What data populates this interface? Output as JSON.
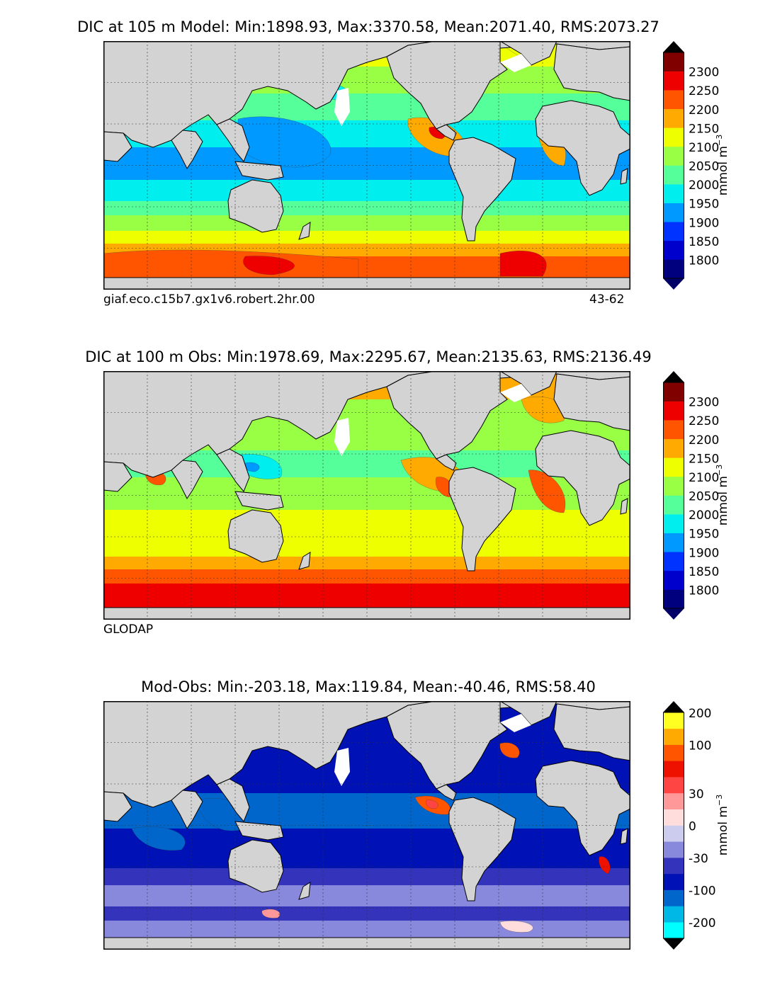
{
  "panels": [
    {
      "title": "DIC at 105 m Model: Min:1898.93, Max:3370.58, Mean:2071.40, RMS:2073.27",
      "left_note": "giaf.eco.c15b7.gx1v6.robert.2hr.00",
      "right_note": "43-62",
      "units_base": "mmol m",
      "units_exp": "−3"
    },
    {
      "title": "DIC at 100 m Obs: Min:1978.69, Max:2295.67, Mean:2135.63, RMS:2136.49",
      "left_note": "GLODAP",
      "right_note": "",
      "units_base": "mmol m",
      "units_exp": "−3"
    },
    {
      "title": "Mod-Obs: Min:-203.18, Max:119.84, Mean:-40.46, RMS:58.40",
      "left_note": "",
      "right_note": "",
      "units_base": "mmol m",
      "units_exp": "−3"
    }
  ],
  "chart_data": [
    {
      "type": "heatmap",
      "title": "DIC at 105 m Model: Min:1898.93, Max:3370.58, Mean:2071.40, RMS:2073.27",
      "source": "giaf.eco.c15b7.gx1v6.robert.2hr.00",
      "period": "43-62",
      "colorbar": {
        "label": "mmol m^-3",
        "ticks": [
          "1800",
          "1850",
          "1900",
          "1950",
          "2000",
          "2050",
          "2100",
          "2150",
          "2200",
          "2250",
          "2300"
        ],
        "colors": [
          "#00007f",
          "#0000cc",
          "#0033ff",
          "#0099ff",
          "#00eeee",
          "#55ff99",
          "#99ff44",
          "#eeff00",
          "#ffaa00",
          "#ff5500",
          "#ee0000",
          "#800000"
        ],
        "extend": "both",
        "under_color": "#000066",
        "over_color": "#000000"
      }
    },
    {
      "type": "heatmap",
      "title": "DIC at 100 m Obs: Min:1978.69, Max:2295.67, Mean:2135.63, RMS:2136.49",
      "source": "GLODAP",
      "colorbar": {
        "label": "mmol m^-3",
        "ticks": [
          "1800",
          "1850",
          "1900",
          "1950",
          "2000",
          "2050",
          "2100",
          "2150",
          "2200",
          "2250",
          "2300"
        ],
        "colors": [
          "#00007f",
          "#0000cc",
          "#0033ff",
          "#0099ff",
          "#00eeee",
          "#55ff99",
          "#99ff44",
          "#eeff00",
          "#ffaa00",
          "#ff5500",
          "#ee0000",
          "#800000"
        ],
        "extend": "both",
        "under_color": "#000066",
        "over_color": "#000000"
      }
    },
    {
      "type": "heatmap",
      "title": "Mod-Obs: Min:-203.18, Max:119.84, Mean:-40.46, RMS:58.40",
      "colorbar": {
        "label": "mmol m^-3",
        "ticks": [
          "-200",
          "-100",
          "-30",
          "0",
          "30",
          "100",
          "200"
        ],
        "colors": [
          "#00ffff",
          "#00b8e6",
          "#0066cc",
          "#0011b5",
          "#3333bb",
          "#8888dd",
          "#ccccee",
          "#ffdddd",
          "#ff9999",
          "#ff4444",
          "#ee1100",
          "#ff5500",
          "#ffaa00",
          "#ffff22"
        ],
        "extend": "both",
        "under_color": "#000000",
        "over_color": "#000000"
      }
    }
  ],
  "colors": {
    "land": "#d3d3d3",
    "no_data": "#ffffff",
    "frame": "#000000"
  }
}
